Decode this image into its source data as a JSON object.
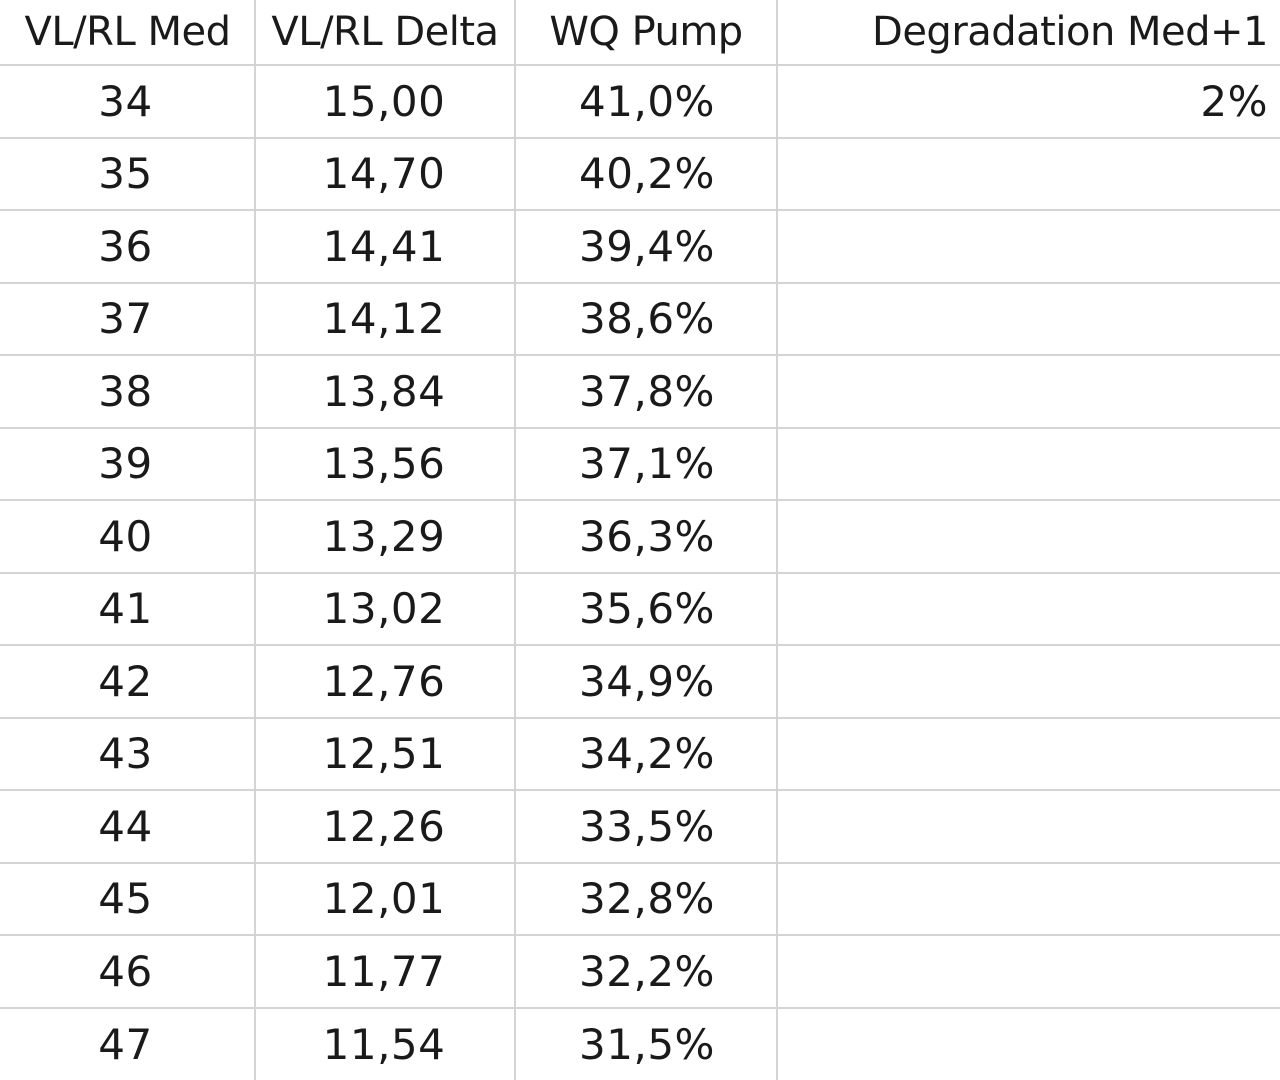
{
  "headers": {
    "col1": "VL/RL Med",
    "col2": "VL/RL Delta",
    "col3": "WQ Pump",
    "col4": "Degradation Med+1"
  },
  "rows": [
    {
      "med": "34",
      "delta": "15,00",
      "pump": "41,0%",
      "degradation": "2%"
    },
    {
      "med": "35",
      "delta": "14,70",
      "pump": "40,2%",
      "degradation": ""
    },
    {
      "med": "36",
      "delta": "14,41",
      "pump": "39,4%",
      "degradation": ""
    },
    {
      "med": "37",
      "delta": "14,12",
      "pump": "38,6%",
      "degradation": ""
    },
    {
      "med": "38",
      "delta": "13,84",
      "pump": "37,8%",
      "degradation": ""
    },
    {
      "med": "39",
      "delta": "13,56",
      "pump": "37,1%",
      "degradation": ""
    },
    {
      "med": "40",
      "delta": "13,29",
      "pump": "36,3%",
      "degradation": ""
    },
    {
      "med": "41",
      "delta": "13,02",
      "pump": "35,6%",
      "degradation": ""
    },
    {
      "med": "42",
      "delta": "12,76",
      "pump": "34,9%",
      "degradation": ""
    },
    {
      "med": "43",
      "delta": "12,51",
      "pump": "34,2%",
      "degradation": ""
    },
    {
      "med": "44",
      "delta": "12,26",
      "pump": "33,5%",
      "degradation": ""
    },
    {
      "med": "45",
      "delta": "12,01",
      "pump": "32,8%",
      "degradation": ""
    },
    {
      "med": "46",
      "delta": "11,77",
      "pump": "32,2%",
      "degradation": ""
    },
    {
      "med": "47",
      "delta": "11,54",
      "pump": "31,5%",
      "degradation": ""
    }
  ]
}
